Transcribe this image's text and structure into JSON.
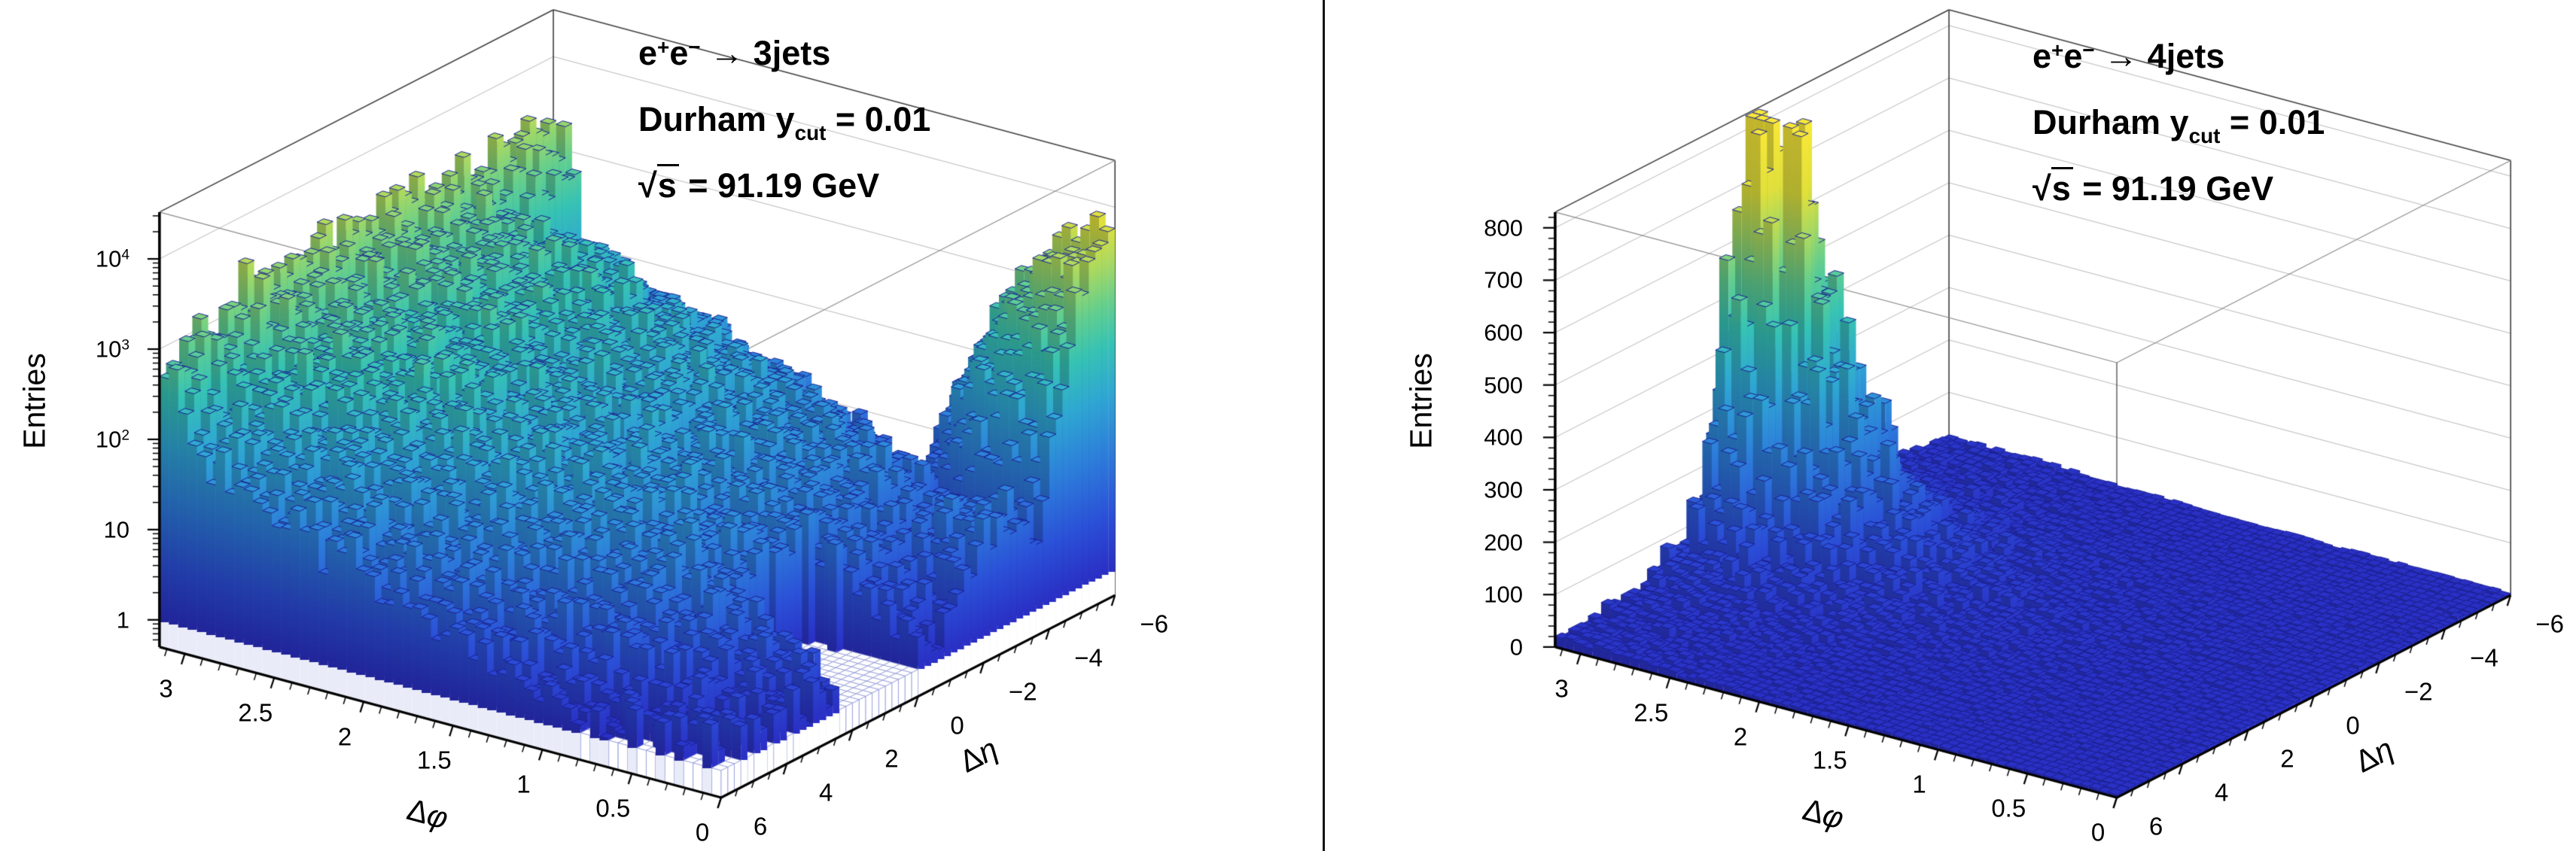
{
  "figure": {
    "background": "#ffffff",
    "divider_color": "#141414"
  },
  "chart_data": {
    "type": "lego3d-histogram-pair",
    "description": "Two ROOT-style 3D LEGO histograms of jet-pair angular correlations (Delta-phi vs Delta-eta) in e+e- collisions at sqrt(s)=91.19 GeV with Durham jet algorithm ycut=0.01",
    "palette": {
      "stops": [
        [
          0,
          "#2a2ec4"
        ],
        [
          0.14,
          "#2b50d8"
        ],
        [
          0.3,
          "#2d7fdb"
        ],
        [
          0.44,
          "#2fa7d3"
        ],
        [
          0.56,
          "#36c3b5"
        ],
        [
          0.66,
          "#64cf8e"
        ],
        [
          0.76,
          "#a8d962"
        ],
        [
          0.85,
          "#e0e03c"
        ],
        [
          1,
          "#f9e838"
        ]
      ],
      "bar_edge": "#1a2090",
      "empty_bin_fill": "#ffffff",
      "empty_bin_line": "#8b93d6",
      "side_face_darken": 0.78,
      "side_face_white": "#e9ecf8"
    },
    "frame": {
      "grid_color": "#b8b8b8",
      "box_edge_color": "#3f3f3f",
      "front_edge_color": "#8a8a8a",
      "axis_color": "#000000"
    },
    "panels": [
      {
        "name": "3jets",
        "title_lines_plain": [
          "e+e- → 3jets",
          "Durham y_cut = 0.01",
          "√s = 91.19 GeV"
        ],
        "title_rich": [
          [
            {
              "t": "e"
            },
            {
              "sup": "+"
            },
            {
              "t": "e"
            },
            {
              "sup": "−"
            },
            {
              "t": " → 3jets"
            }
          ],
          [
            {
              "t": "Durham y"
            },
            {
              "sub": "cut"
            },
            {
              "t": " = 0.01"
            }
          ],
          [
            {
              "t": "√"
            },
            {
              "ol": "s"
            },
            {
              "t": " = 91.19 GeV"
            }
          ]
        ],
        "x_axis": {
          "title_plain": "Δφ",
          "title_rich": [
            {
              "t": "Δ"
            },
            {
              "i": "φ"
            }
          ],
          "range": [
            0,
            3.14159
          ],
          "tick_labels": [
            "3",
            "2.5",
            "2",
            "1.5",
            "1",
            "0.5",
            "0"
          ],
          "tick_values": [
            3,
            2.5,
            2,
            1.5,
            1,
            0.5,
            0
          ],
          "minor_step": 0.1
        },
        "y_axis": {
          "title_plain": "Δη",
          "title_rich": [
            {
              "t": "Δ"
            },
            {
              "i": "η"
            }
          ],
          "range": [
            6,
            -6
          ],
          "tick_labels": [
            "6",
            "4",
            "2",
            "0",
            "−2",
            "−4",
            "−6"
          ],
          "tick_values": [
            6,
            4,
            2,
            0,
            -2,
            -4,
            -6
          ],
          "minor_step": 0.5
        },
        "z_axis": {
          "title": "Entries",
          "scale": "log",
          "range": [
            0.5,
            33000
          ],
          "tick_values": [
            1,
            10,
            100,
            1000,
            10000
          ],
          "tick_labels_plain": [
            "1",
            "10",
            "10^2",
            "10^3",
            "10^4"
          ],
          "tick_labels_rich": [
            [
              {
                "t": "1"
              }
            ],
            [
              {
                "t": "10"
              }
            ],
            [
              {
                "t": "10"
              },
              {
                "sup": "2"
              }
            ],
            [
              {
                "t": "10"
              },
              {
                "sup": "3"
              }
            ],
            [
              {
                "t": "10"
              },
              {
                "sup": "4"
              }
            ]
          ]
        },
        "bins": {
          "nphi": 60,
          "neta": 60
        },
        "noise_seed": 7,
        "surface_model": {
          "kind": "log10-components",
          "mound_fphi_x": [
            0,
            0.4,
            0.8,
            1.2,
            1.6,
            2.0,
            2.4,
            2.8,
            3.0,
            3.142
          ],
          "mound_fphi_log10": [
            0.2,
            0.9,
            1.4,
            1.7,
            1.95,
            2.2,
            2.45,
            2.7,
            2.9,
            3.3
          ],
          "eta_falloff": {
            "c0": 0.25,
            "c1": 0.035,
            "start": 2.6,
            "pow": 1.5
          },
          "wall_row_eta": [
            -6,
            -5,
            -4,
            -3,
            -2,
            -1,
            0,
            1,
            2,
            3,
            4,
            5,
            6
          ],
          "wall_row_log10": [
            3.38,
            3.36,
            3.34,
            3.33,
            3.32,
            3.31,
            3.3,
            3.29,
            3.27,
            3.22,
            3.15,
            3.05,
            2.97
          ],
          "wall_width_phi": 0.16,
          "corner_spike": {
            "logA": 3.72,
            "eta0": -6,
            "seta": 1.35,
            "sphi": 0.55
          },
          "front_bump": {
            "logA": 1.15,
            "eta0": -2.6,
            "seta": 1.7,
            "sphi": 1.1
          },
          "hole": {
            "phi_max": 0.58,
            "eta_min": 0.05,
            "eta_max": 2.35
          },
          "noise_sigma_log10": 0.13,
          "log10_cap": 4.5
        },
        "features": {
          "ridge_at_phi_pi_entries": "about 1000-2400 for all Delta-eta",
          "corner_spike_at_phi0_etaMinus6_entries": "about 5000",
          "central_mound_entries": "about 30-300",
          "empty_region": "Delta-phi < 0.6 with Delta-eta between 0 and 2.3"
        }
      },
      {
        "name": "4jets",
        "title_lines_plain": [
          "e+e- → 4jets",
          "Durham y_cut = 0.01",
          "√s = 91.19 GeV"
        ],
        "title_rich": [
          [
            {
              "t": "e"
            },
            {
              "sup": "+"
            },
            {
              "t": "e"
            },
            {
              "sup": "−"
            },
            {
              "t": " → 4jets"
            }
          ],
          [
            {
              "t": "Durham y"
            },
            {
              "sub": "cut"
            },
            {
              "t": " = 0.01"
            }
          ],
          [
            {
              "t": "√"
            },
            {
              "ol": "s"
            },
            {
              "t": " = 91.19 GeV"
            }
          ]
        ],
        "x_axis": {
          "title_plain": "Δφ",
          "title_rich": [
            {
              "t": "Δ"
            },
            {
              "i": "φ"
            }
          ],
          "range": [
            0,
            3.14159
          ],
          "tick_labels": [
            "3",
            "2.5",
            "2",
            "1.5",
            "1",
            "0.5",
            "0"
          ],
          "tick_values": [
            3,
            2.5,
            2,
            1.5,
            1,
            0.5,
            0
          ],
          "minor_step": 0.1
        },
        "y_axis": {
          "title_plain": "Δη",
          "title_rich": [
            {
              "t": "Δ"
            },
            {
              "i": "η"
            }
          ],
          "range": [
            6,
            -6
          ],
          "tick_labels": [
            "6",
            "4",
            "2",
            "0",
            "−2",
            "−4",
            "−6"
          ],
          "tick_values": [
            6,
            4,
            2,
            0,
            -2,
            -4,
            -6
          ],
          "minor_step": 0.5
        },
        "z_axis": {
          "title": "Entries",
          "scale": "linear",
          "range": [
            0,
            830
          ],
          "tick_values": [
            0,
            100,
            200,
            300,
            400,
            500,
            600,
            700,
            800
          ],
          "tick_labels_plain": [
            "0",
            "100",
            "200",
            "300",
            "400",
            "500",
            "600",
            "700",
            "800"
          ],
          "tick_labels_rich": [
            [
              {
                "t": "0"
              }
            ],
            [
              {
                "t": "100"
              }
            ],
            [
              {
                "t": "200"
              }
            ],
            [
              {
                "t": "300"
              }
            ],
            [
              {
                "t": "400"
              }
            ],
            [
              {
                "t": "500"
              }
            ],
            [
              {
                "t": "600"
              }
            ],
            [
              {
                "t": "700"
              }
            ],
            [
              {
                "t": "800"
              }
            ]
          ],
          "minor_step": 20
        },
        "bins": {
          "nphi": 60,
          "neta": 60
        },
        "noise_seed": 11,
        "surface_model": {
          "kind": "linear-components",
          "base": 5,
          "components": [
            {
              "A": 640,
              "sphi": 0.52,
              "seta": 1.32
            },
            {
              "A": 65,
              "sphi": 1.15,
              "seta": 2.6
            },
            {
              "A": 22,
              "sphi": 2.2,
              "seta": 4.0
            },
            {
              "A": 12,
              "sphi": 0.9,
              "seta": 90
            }
          ],
          "noise_frac": 0.22,
          "z_min": 1.5,
          "z_cap": 828
        },
        "features": {
          "peak_at": "Delta-phi ≈ pi, Delta-eta ≈ 0",
          "peak_entries": "about 800",
          "floor_entries": "about 5-40 everywhere"
        }
      }
    ]
  }
}
